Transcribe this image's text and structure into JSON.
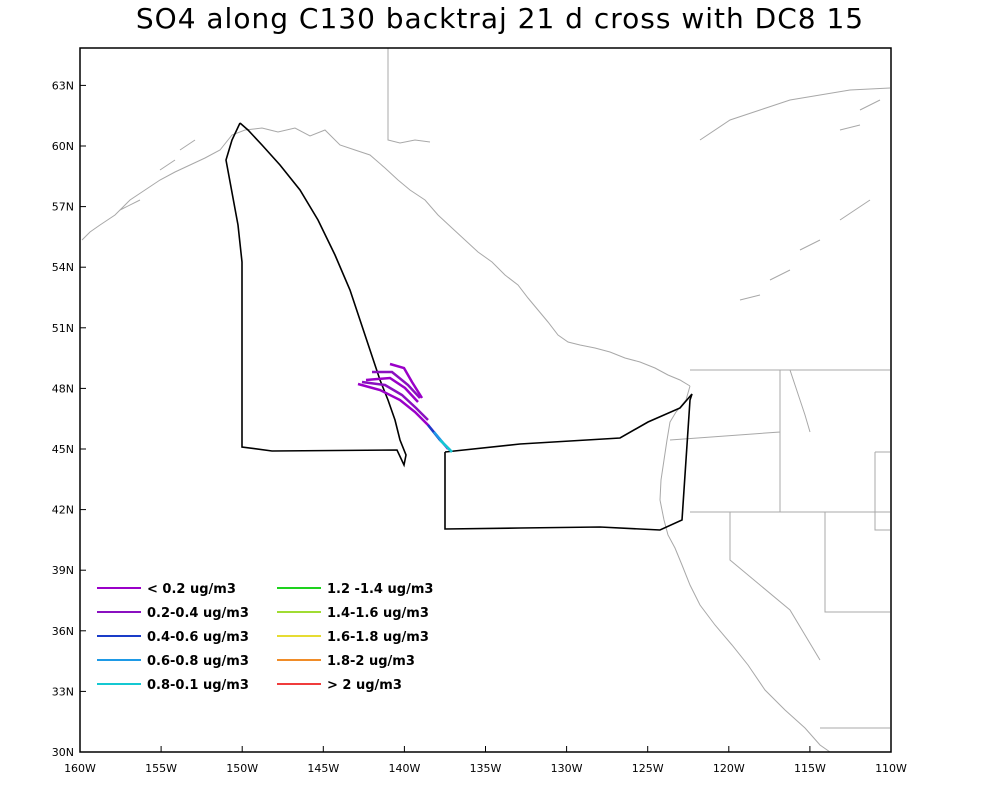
{
  "title": "SO4 along C130 backtraj 21 d cross with DC8 15",
  "x_ticks": [
    "160W",
    "155W",
    "150W",
    "145W",
    "140W",
    "135W",
    "130W",
    "125W",
    "120W",
    "115W",
    "110W"
  ],
  "y_ticks": [
    "30N",
    "33N",
    "36N",
    "39N",
    "42N",
    "45N",
    "48N",
    "51N",
    "54N",
    "57N",
    "60N",
    "63N"
  ],
  "legend": [
    {
      "label": "< 0.2 ug/m3",
      "color": "#9a00c8"
    },
    {
      "label": "0.2-0.4 ug/m3",
      "color": "#8a10c0"
    },
    {
      "label": "0.4-0.6 ug/m3",
      "color": "#1a3cc8"
    },
    {
      "label": "0.6-0.8 ug/m3",
      "color": "#1e9ae6"
    },
    {
      "label": "0.8-0.1 ug/m3",
      "color": "#14c8d2"
    },
    {
      "label": "1.2 -1.4 ug/m3",
      "color": "#1ed21e"
    },
    {
      "label": "1.4-1.6 ug/m3",
      "color": "#a0dc32"
    },
    {
      "label": "1.6-1.8 ug/m3",
      "color": "#e6dc32"
    },
    {
      "label": "1.8-2 ug/m3",
      "color": "#f08c28"
    },
    {
      "label": "> 2 ug/m3",
      "color": "#f03c3c"
    }
  ]
}
